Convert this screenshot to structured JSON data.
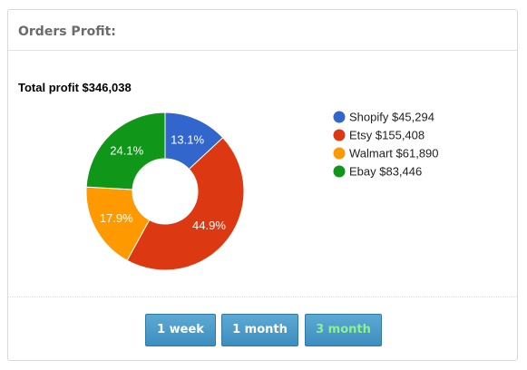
{
  "card": {
    "title": "Orders Profit:"
  },
  "total_profit_label": "Total profit $346,038",
  "buttons": [
    {
      "label": "1 week",
      "active": false
    },
    {
      "label": "1 month",
      "active": false
    },
    {
      "label": "3 month",
      "active": true
    }
  ],
  "colors": {
    "shopify": "#3366cc",
    "etsy": "#dc3912",
    "walmart": "#ff9900",
    "ebay": "#109618",
    "active_button_text": "#8ff08f"
  },
  "chart_data": {
    "type": "pie",
    "donut": true,
    "title": "",
    "legend_position": "right",
    "slices": [
      {
        "name": "Shopify",
        "value": 45294,
        "legend_label": "Shopify $45,294",
        "percent_label": "13.1%",
        "color": "#3366cc"
      },
      {
        "name": "Etsy",
        "value": 155408,
        "legend_label": "Etsy $155,408",
        "percent_label": "44.9%",
        "color": "#dc3912"
      },
      {
        "name": "Walmart",
        "value": 61890,
        "legend_label": "Walmart $61,890",
        "percent_label": "17.9%",
        "color": "#ff9900"
      },
      {
        "name": "Ebay",
        "value": 83446,
        "legend_label": "Ebay $83,446",
        "percent_label": "24.1%",
        "color": "#109618"
      }
    ]
  }
}
